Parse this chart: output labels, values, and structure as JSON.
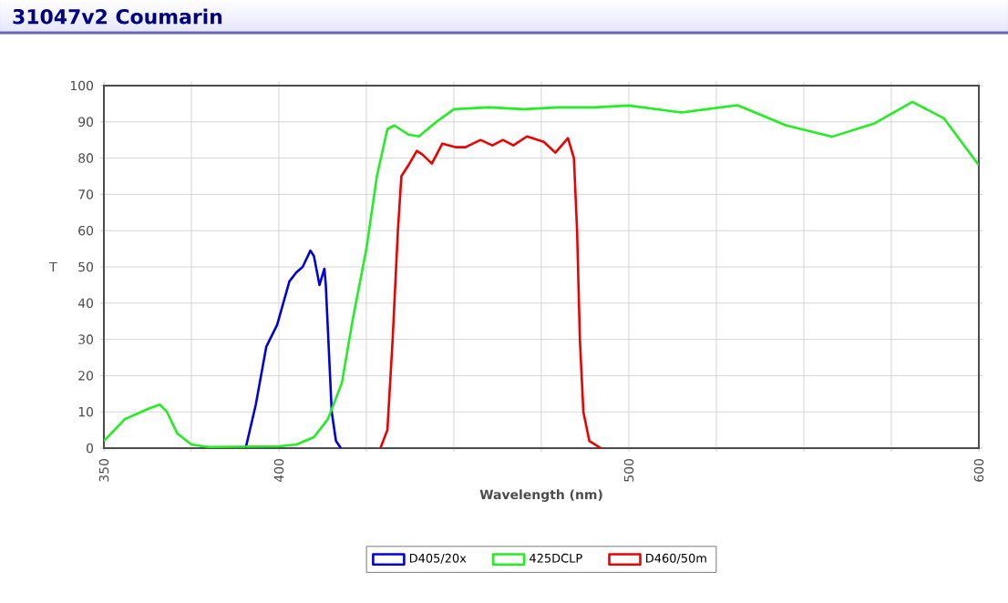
{
  "chart_data": {
    "type": "line",
    "title": "31047v2 Coumarin",
    "xlabel": "Wavelength (nm)",
    "ylabel": "T",
    "xlim": [
      350,
      600
    ],
    "ylim": [
      0,
      100
    ],
    "xticks": [
      350,
      {
        "value": 375,
        "label": null
      },
      400,
      {
        "value": 425,
        "label": null
      },
      {
        "value": 450,
        "label": null
      },
      {
        "value": 475,
        "label": null
      },
      500,
      {
        "value": 525,
        "label": null
      },
      {
        "value": 550,
        "label": null
      },
      {
        "value": 575,
        "label": null
      },
      600
    ],
    "yticks": [
      0,
      10,
      20,
      30,
      40,
      50,
      60,
      70,
      80,
      90,
      100
    ],
    "grid": true,
    "legend": "bottom",
    "marker": "none",
    "line_style": "solid",
    "series": [
      {
        "name": "D405/20x",
        "color": "#0000dd",
        "x": [
          390.5,
          393.4,
          396.4,
          399.5,
          403,
          405,
          406.8,
          409,
          410,
          411.6,
          413,
          413.4,
          415.1,
          416.3,
          417.7
        ],
        "values": [
          0,
          12,
          28,
          34,
          46,
          48.5,
          50,
          54.5,
          53,
          45,
          49.5,
          45,
          10,
          2,
          0
        ]
      },
      {
        "name": "425DCLP",
        "color": "#22ee22",
        "x": [
          350,
          356,
          363,
          366,
          368,
          371,
          375,
          380,
          400,
          405,
          410,
          414,
          418,
          421,
          425,
          428,
          431,
          433,
          437,
          440,
          445,
          450,
          460,
          470,
          480,
          490,
          500,
          515,
          531,
          545,
          558,
          570,
          581,
          590,
          600
        ],
        "values": [
          2,
          8,
          11,
          12,
          10,
          4,
          1,
          0.3,
          0.5,
          1,
          3,
          8,
          18,
          35,
          55,
          75,
          88,
          89,
          86.5,
          86,
          90,
          93.5,
          94,
          93.5,
          94,
          94,
          94.5,
          92.6,
          94.6,
          89,
          85.9,
          89.5,
          95.5,
          91,
          78
        ]
      },
      {
        "name": "D460/50m",
        "color": "#ee0000",
        "x": [
          429,
          431,
          432.5,
          434,
          435,
          437,
          439.4,
          441,
          443.7,
          446.7,
          450.7,
          453.3,
          457.6,
          461,
          464,
          467,
          470.9,
          475.7,
          479,
          482.6,
          484.3,
          485.2,
          486,
          487,
          488.7,
          492
        ],
        "values": [
          0,
          5,
          30,
          60,
          75,
          78,
          82,
          81,
          78.5,
          84,
          83,
          83,
          85,
          83.5,
          85,
          83.5,
          86,
          84.5,
          81.5,
          85.5,
          80,
          60,
          30,
          10,
          2,
          0
        ]
      }
    ]
  }
}
